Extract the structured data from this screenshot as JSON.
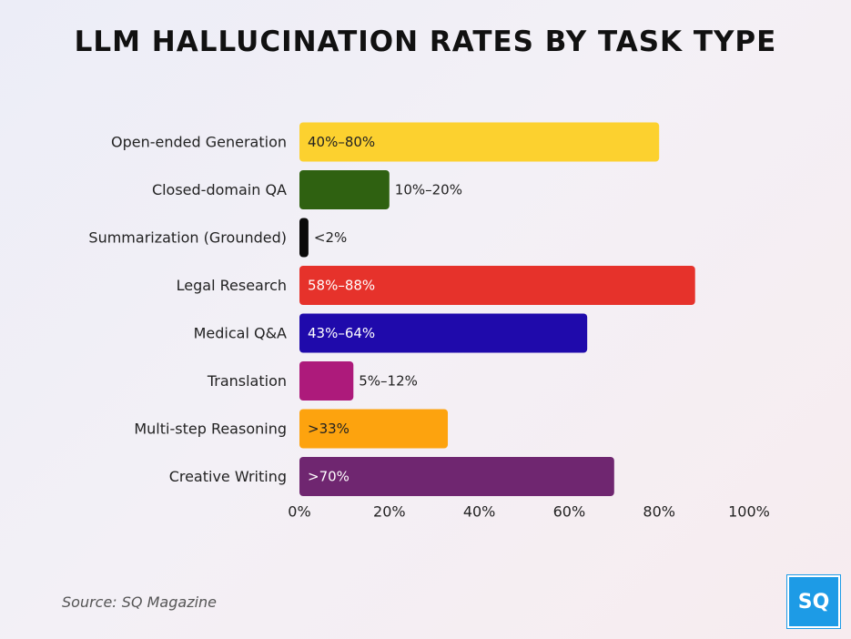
{
  "chart_data": {
    "type": "bar",
    "orientation": "horizontal",
    "title": "LLM HALLUCINATION RATES BY TASK TYPE",
    "categories": [
      "Open-ended Generation",
      "Closed-domain QA",
      "Summarization (Grounded)",
      "Legal Research",
      "Medical Q&A",
      "Translation",
      "Multi-step Reasoning",
      "Creative Writing"
    ],
    "values": [
      80,
      20,
      2,
      88,
      64,
      12,
      33,
      70
    ],
    "data_labels": [
      "40%–80%",
      "10%–20%",
      "<2%",
      "58%–88%",
      "43%–64%",
      "5%–12%",
      ">33%",
      ">70%"
    ],
    "label_inside": [
      true,
      false,
      false,
      true,
      true,
      false,
      true,
      true
    ],
    "colors": [
      "#fcd12f",
      "#2f6111",
      "#0a0a0a",
      "#e6322b",
      "#1f0aab",
      "#ad1a7b",
      "#fda30e",
      "#6f2670"
    ],
    "label_colors": [
      "#222222",
      "#222222",
      "#222222",
      "#ffffff",
      "#ffffff",
      "#222222",
      "#222222",
      "#ffffff"
    ],
    "xlim": [
      0,
      100
    ],
    "x_ticks": [
      "0%",
      "20%",
      "40%",
      "60%",
      "80%",
      "100%"
    ],
    "grid": false,
    "legend": "none"
  },
  "source": "Source: SQ Magazine",
  "logo": "SQ"
}
